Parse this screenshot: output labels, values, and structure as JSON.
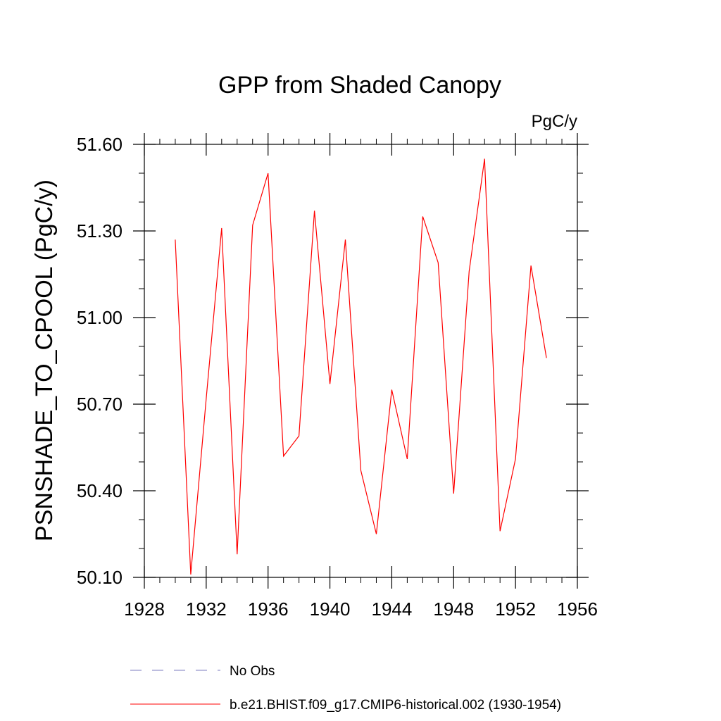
{
  "chart_data": {
    "type": "line",
    "title": "GPP from Shaded Canopy",
    "units_label": "PgC/y",
    "ylabel": "PSNSHADE_TO_CPOOL  (PgC/y)",
    "xlabel": "",
    "xlim": [
      1928,
      1956
    ],
    "ylim": [
      50.1,
      51.6
    ],
    "x_ticks": [
      1928,
      1932,
      1936,
      1940,
      1944,
      1948,
      1952,
      1956
    ],
    "x_tick_labels": [
      "1928",
      "1932",
      "1936",
      "1940",
      "1944",
      "1948",
      "1952",
      "1956"
    ],
    "x_minor_step": 1,
    "y_ticks": [
      50.1,
      50.4,
      50.7,
      51.0,
      51.3,
      51.6
    ],
    "y_tick_labels": [
      "50.10",
      "50.40",
      "50.70",
      "51.00",
      "51.30",
      "51.60"
    ],
    "y_minor_step": 0.1,
    "grid": false,
    "legend_position": "bottom",
    "series": [
      {
        "name": "b.e21.BHIST.f09_g17.CMIP6-historical.002 (1930-1954)",
        "color": "#ff0000",
        "style": "solid",
        "x": [
          1930,
          1931,
          1932,
          1933,
          1934,
          1935,
          1936,
          1937,
          1938,
          1939,
          1940,
          1941,
          1942,
          1943,
          1944,
          1945,
          1946,
          1947,
          1948,
          1949,
          1950,
          1951,
          1952,
          1953,
          1954
        ],
        "values": [
          51.27,
          50.11,
          50.72,
          51.31,
          50.18,
          51.32,
          51.5,
          50.52,
          50.59,
          51.37,
          50.77,
          51.27,
          50.47,
          50.25,
          50.75,
          50.51,
          51.35,
          51.19,
          50.39,
          51.16,
          51.55,
          50.26,
          50.51,
          51.18,
          50.86
        ]
      }
    ],
    "legend": [
      {
        "label": "No Obs",
        "color": "#7b7bbf",
        "style": "dashed"
      },
      {
        "label": "b.e21.BHIST.f09_g17.CMIP6-historical.002 (1930-1954)",
        "color": "#ff0000",
        "style": "solid"
      }
    ]
  }
}
